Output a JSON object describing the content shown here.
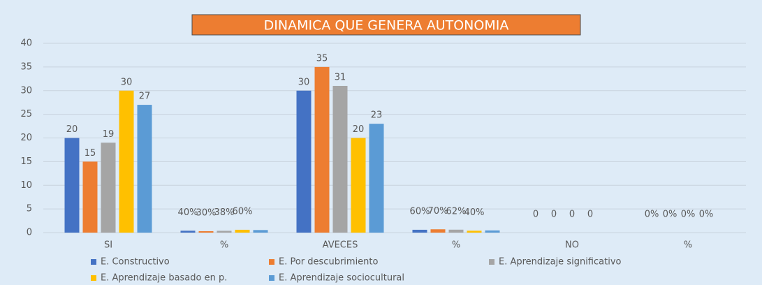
{
  "chart_data": {
    "type": "bar",
    "title": "DINAMICA QUE GENERA AUTONOMIA",
    "categories": [
      "SI",
      "%",
      "AVECES",
      "%",
      "NO",
      "%"
    ],
    "series": [
      {
        "name": "E. Constructivo",
        "color": "#4472c4",
        "values": [
          20,
          0.4,
          30,
          0.6,
          0,
          0
        ],
        "value_labels": [
          "20",
          "40%",
          "30",
          "60%",
          "0",
          "0%"
        ]
      },
      {
        "name": "E. Por descubrimiento",
        "color": "#ed7d31",
        "values": [
          15,
          0.3,
          35,
          0.7,
          0,
          0
        ],
        "value_labels": [
          "15",
          "30%",
          "35",
          "70%",
          "0",
          "0%"
        ]
      },
      {
        "name": "E. Aprendizaje significativo",
        "color": "#a5a5a5",
        "values": [
          19,
          0.38,
          31,
          0.62,
          0,
          0
        ],
        "value_labels": [
          "19",
          "38%",
          "31",
          "62%",
          "0",
          "0%"
        ]
      },
      {
        "name": "E. Aprendizaje basado en p.",
        "color": "#ffc000",
        "values": [
          30,
          0.6,
          20,
          0.4,
          0,
          0
        ],
        "value_labels": [
          "30",
          "60%",
          "20",
          "40%",
          "0",
          "0%"
        ]
      },
      {
        "name": "E. Aprendizaje sociocultural",
        "color": "#5b9bd5",
        "values": [
          27,
          0.54,
          23,
          0.46,
          0,
          0
        ],
        "value_labels": [
          "27",
          null,
          "23",
          null,
          null,
          null
        ]
      }
    ],
    "ylim": [
      0,
      40
    ],
    "yticks": [
      0,
      5,
      10,
      15,
      20,
      25,
      30,
      35,
      40
    ],
    "grid": true,
    "legend": "bottom"
  }
}
